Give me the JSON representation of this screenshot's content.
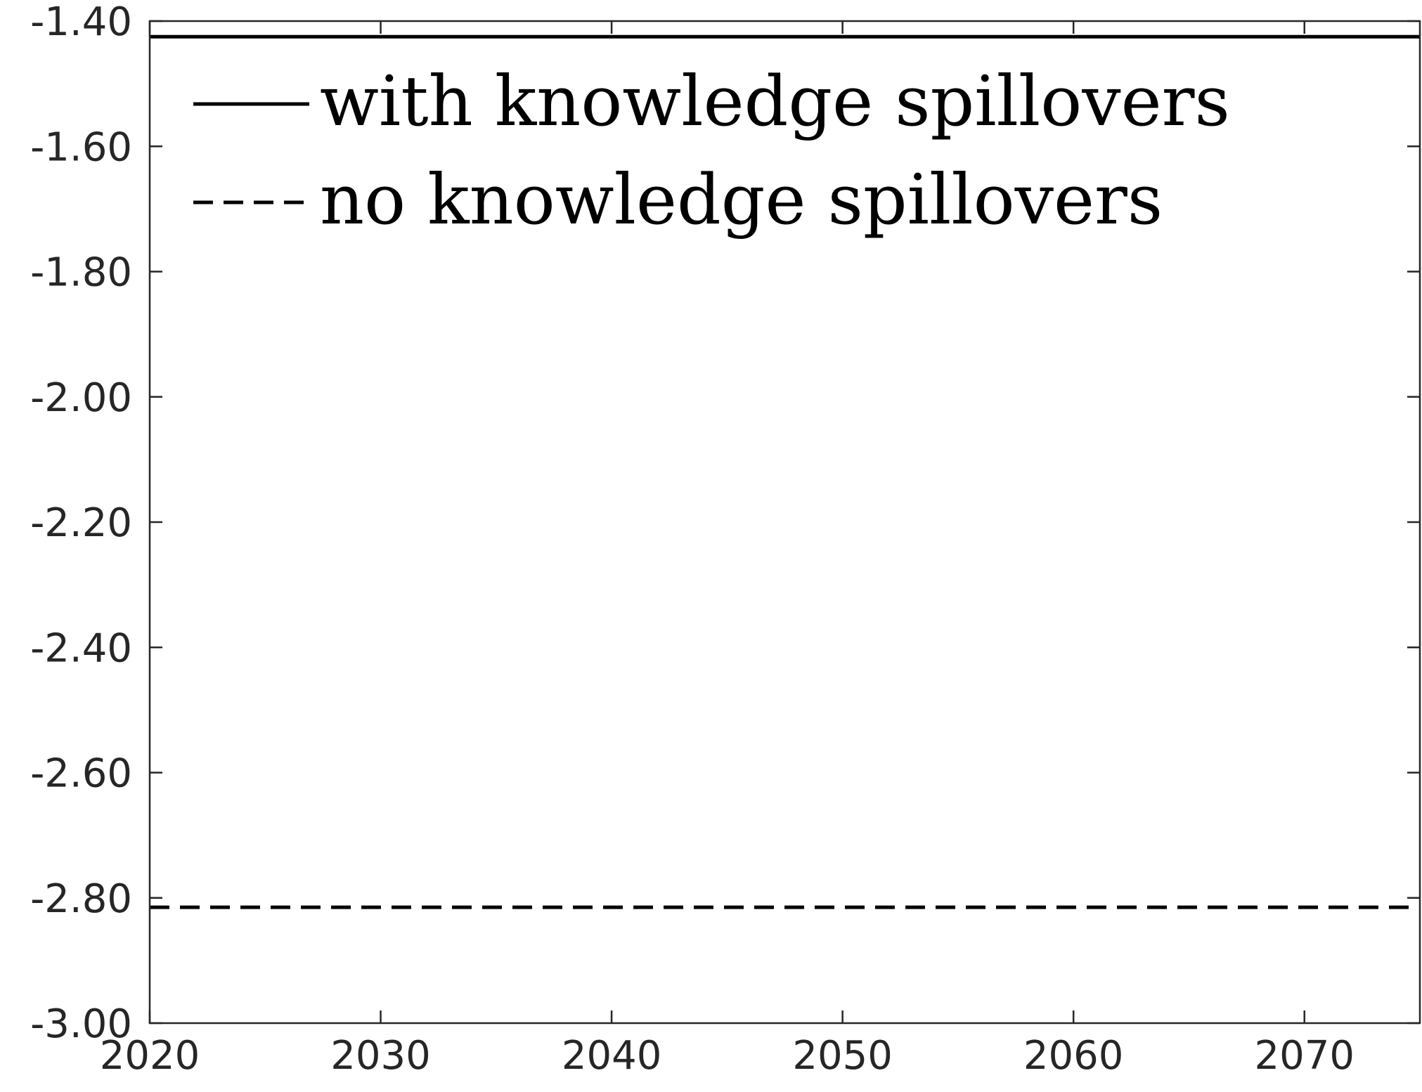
{
  "chart_data": {
    "type": "line",
    "title": "",
    "xlabel": "",
    "ylabel": "",
    "xlim": [
      2020,
      2075
    ],
    "ylim": [
      -3.0,
      -1.4
    ],
    "x_ticks": [
      "2020",
      "2030",
      "2040",
      "2050",
      "2060",
      "2070"
    ],
    "y_ticks": [
      "-1.40",
      "-1.60",
      "-1.80",
      "-2.00",
      "-2.20",
      "-2.40",
      "-2.60",
      "-2.80",
      "-3.00"
    ],
    "grid": false,
    "legend_position": "top-left",
    "series": [
      {
        "name": "with knowledge spillovers",
        "style": "solid",
        "color": "#000000",
        "x": [
          2020,
          2075
        ],
        "y": [
          -1.425,
          -1.425
        ]
      },
      {
        "name": "no knowledge spillovers",
        "style": "dashed",
        "color": "#000000",
        "x": [
          2020,
          2075
        ],
        "y": [
          -2.815,
          -2.815
        ]
      }
    ]
  }
}
